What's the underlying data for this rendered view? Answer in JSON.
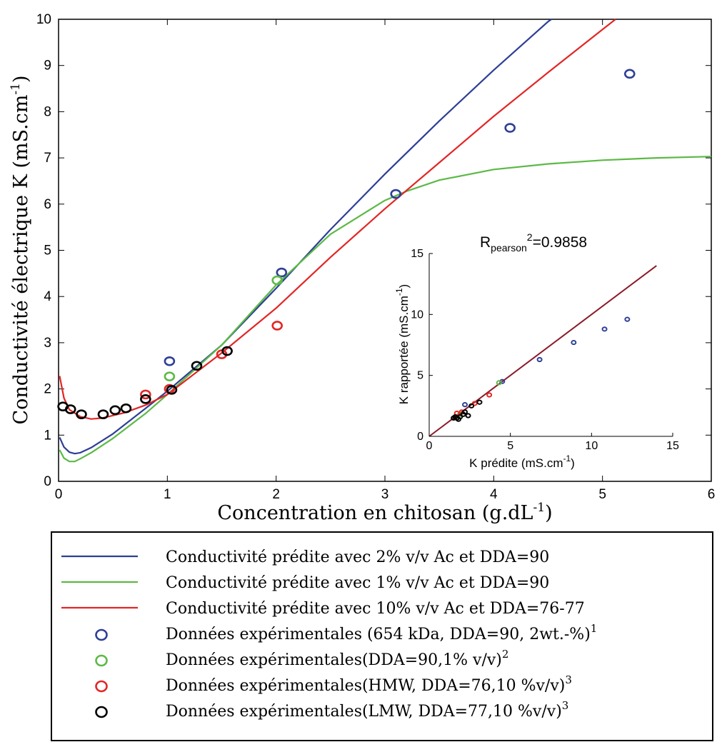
{
  "chart_data": [
    {
      "type": "line",
      "xlabel": "Concentration en chitosan (g.dL",
      "xlabel_sup": "-1",
      "xlabel_end": ")",
      "ylabel": "Conductivité électrique K (mS.cm",
      "ylabel_sup": "-1",
      "ylabel_end": ")",
      "xlim": [
        0,
        6
      ],
      "ylim": [
        0,
        10
      ],
      "xticks": [
        "0",
        "1",
        "2",
        "3",
        "4",
        "5",
        "6"
      ],
      "yticks": [
        "0",
        "1",
        "2",
        "3",
        "4",
        "5",
        "6",
        "7",
        "8",
        "9",
        "10"
      ],
      "grid": false,
      "series": [
        {
          "name": "Conductivité prédite avec 2% v/v Ac et DDA=90",
          "kind": "line",
          "color": "#2e3f96",
          "points": [
            [
              0.01,
              0.95
            ],
            [
              0.05,
              0.74
            ],
            [
              0.1,
              0.63
            ],
            [
              0.15,
              0.6
            ],
            [
              0.2,
              0.62
            ],
            [
              0.3,
              0.73
            ],
            [
              0.5,
              1.03
            ],
            [
              0.8,
              1.58
            ],
            [
              1.0,
              1.95
            ],
            [
              1.5,
              2.95
            ],
            [
              2.0,
              4.18
            ],
            [
              2.5,
              5.45
            ],
            [
              3.0,
              6.65
            ],
            [
              3.5,
              7.8
            ],
            [
              4.0,
              8.9
            ],
            [
              4.5,
              9.95
            ],
            [
              4.53,
              10.0
            ]
          ]
        },
        {
          "name": "Conductivité prédite avec 1% v/v Ac et DDA=90",
          "kind": "line",
          "color": "#5cb947",
          "points": [
            [
              0.01,
              0.68
            ],
            [
              0.05,
              0.5
            ],
            [
              0.1,
              0.43
            ],
            [
              0.15,
              0.43
            ],
            [
              0.2,
              0.49
            ],
            [
              0.3,
              0.62
            ],
            [
              0.5,
              0.93
            ],
            [
              0.8,
              1.47
            ],
            [
              1.0,
              1.88
            ],
            [
              1.5,
              2.95
            ],
            [
              2.0,
              4.25
            ],
            [
              2.5,
              5.35
            ],
            [
              3.0,
              6.08
            ],
            [
              3.2,
              6.28
            ],
            [
              3.5,
              6.52
            ],
            [
              4.0,
              6.75
            ],
            [
              4.5,
              6.87
            ],
            [
              5.0,
              6.95
            ],
            [
              5.5,
              7.0
            ],
            [
              6.0,
              7.03
            ]
          ]
        },
        {
          "name": "Conductivité prédite avec 10% v/v Ac et DDA=76-77",
          "kind": "line",
          "color": "#e22626",
          "points": [
            [
              0.01,
              2.28
            ],
            [
              0.05,
              1.8
            ],
            [
              0.1,
              1.55
            ],
            [
              0.2,
              1.4
            ],
            [
              0.3,
              1.35
            ],
            [
              0.4,
              1.37
            ],
            [
              0.6,
              1.48
            ],
            [
              0.8,
              1.65
            ],
            [
              1.0,
              1.88
            ],
            [
              1.5,
              2.78
            ],
            [
              2.0,
              3.75
            ],
            [
              2.5,
              4.85
            ],
            [
              3.0,
              5.9
            ],
            [
              3.5,
              6.9
            ],
            [
              4.0,
              7.9
            ],
            [
              4.5,
              8.85
            ],
            [
              5.0,
              9.78
            ],
            [
              5.12,
              10.0
            ]
          ]
        },
        {
          "name": "Données expérimentales (654 kDa, DDA=90, 2wt.-%)",
          "kind": "scatter",
          "color": "#2e3f96",
          "points": [
            [
              1.02,
              2.6
            ],
            [
              2.05,
              4.52
            ],
            [
              3.1,
              6.22
            ],
            [
              4.15,
              7.65
            ],
            [
              5.25,
              8.82
            ]
          ]
        },
        {
          "name": "Données expérimentales(DDA=90,1% v/v)",
          "kind": "scatter",
          "color": "#5cb947",
          "points": [
            [
              1.02,
              2.27
            ],
            [
              2.01,
              4.35
            ]
          ]
        },
        {
          "name": "Données expérimentales(HMW, DDA=76,10 %v/v)",
          "kind": "scatter",
          "color": "#e22626",
          "points": [
            [
              0.8,
              1.88
            ],
            [
              1.02,
              2.0
            ],
            [
              1.5,
              2.75
            ],
            [
              2.01,
              3.37
            ]
          ]
        },
        {
          "name": "Données expérimentales(LMW, DDA=77,10 %v/v)",
          "kind": "scatter",
          "color": "#000000",
          "points": [
            [
              0.04,
              1.62
            ],
            [
              0.11,
              1.56
            ],
            [
              0.21,
              1.45
            ],
            [
              0.41,
              1.45
            ],
            [
              0.52,
              1.54
            ],
            [
              0.62,
              1.58
            ],
            [
              0.8,
              1.78
            ],
            [
              1.04,
              1.98
            ],
            [
              1.27,
              2.5
            ],
            [
              1.55,
              2.82
            ]
          ]
        }
      ]
    },
    {
      "type": "scatter",
      "xlabel": "K prédite (mS.cm",
      "xlabel_sup": "-1",
      "xlabel_end": ")",
      "ylabel": "K rapportée (mS.cm",
      "ylabel_sup": "-1",
      "ylabel_end": ")",
      "xlim": [
        0,
        15
      ],
      "ylim": [
        0,
        15
      ],
      "xticks": [
        "0",
        "5",
        "10",
        "15"
      ],
      "yticks": [
        "0",
        "5",
        "10",
        "15"
      ],
      "annotation": {
        "main": "R",
        "sub": "pearson",
        "sup": "2",
        "tail": "=0.9858"
      },
      "fit_line": {
        "color": "#8b1a2a",
        "points": [
          [
            0,
            0
          ],
          [
            14,
            14
          ]
        ]
      },
      "series": [
        {
          "color": "#2e3f96",
          "points": [
            [
              2.2,
              2.6
            ],
            [
              4.5,
              4.5
            ],
            [
              6.8,
              6.3
            ],
            [
              8.9,
              7.7
            ],
            [
              10.8,
              8.8
            ],
            [
              12.2,
              9.6
            ]
          ]
        },
        {
          "color": "#5cb947",
          "points": [
            [
              1.9,
              1.8
            ],
            [
              4.3,
              4.4
            ]
          ]
        },
        {
          "color": "#e22626",
          "points": [
            [
              1.7,
              1.9
            ],
            [
              2.0,
              2.0
            ],
            [
              2.8,
              2.7
            ],
            [
              3.7,
              3.4
            ]
          ]
        },
        {
          "color": "#000000",
          "points": [
            [
              1.5,
              1.5
            ],
            [
              1.6,
              1.6
            ],
            [
              1.7,
              1.5
            ],
            [
              1.9,
              1.6
            ],
            [
              2.1,
              1.8
            ],
            [
              2.2,
              2.0
            ],
            [
              2.6,
              2.5
            ],
            [
              3.1,
              2.8
            ],
            [
              2.4,
              1.7
            ],
            [
              1.8,
              1.4
            ]
          ]
        }
      ]
    }
  ],
  "legend": {
    "items": [
      {
        "kind": "line",
        "color": "#2e3f96",
        "label": "Conductivité prédite avec 2% v/v Ac et DDA=90",
        "sup": ""
      },
      {
        "kind": "line",
        "color": "#5cb947",
        "label": "Conductivité prédite avec 1% v/v Ac et DDA=90",
        "sup": ""
      },
      {
        "kind": "line",
        "color": "#e22626",
        "label": "Conductivité prédite avec 10% v/v Ac et DDA=76-77",
        "sup": ""
      },
      {
        "kind": "marker",
        "color": "#2e3f96",
        "label": "Données expérimentales (654 kDa, DDA=90, 2wt.-%)",
        "sup": "1"
      },
      {
        "kind": "marker",
        "color": "#5cb947",
        "label": "Données expérimentales(DDA=90,1% v/v)",
        "sup": "2"
      },
      {
        "kind": "marker",
        "color": "#e22626",
        "label": "Données expérimentales(HMW, DDA=76,10 %v/v)",
        "sup": "3"
      },
      {
        "kind": "marker",
        "color": "#000000",
        "label": "Données expérimentales(LMW, DDA=77,10 %v/v)",
        "sup": "3"
      }
    ]
  }
}
